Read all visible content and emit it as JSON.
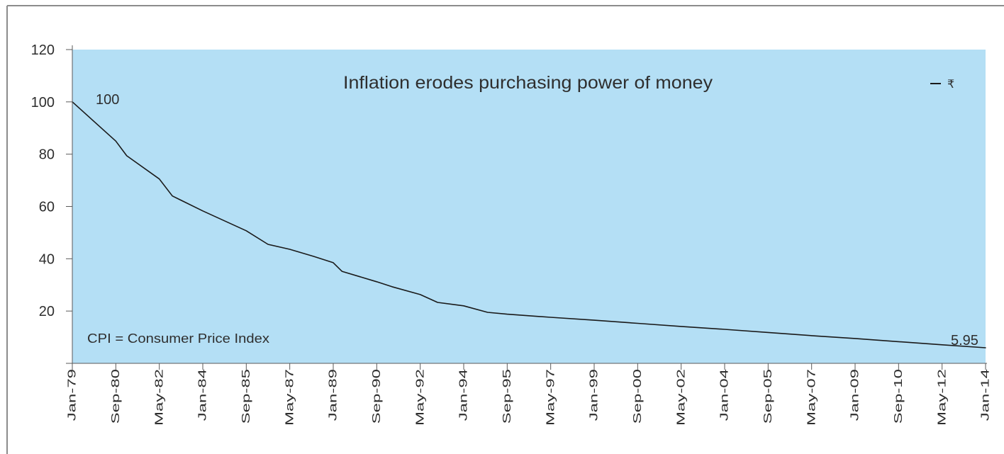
{
  "chart_data": {
    "type": "line",
    "title": "Inflation erodes purchasing power of money",
    "xlim": [
      "1979-01",
      "2014-01"
    ],
    "ylim": [
      0,
      120
    ],
    "y_ticks": [
      20,
      40,
      60,
      80,
      100,
      120
    ],
    "x_tick_labels": [
      "Jan-79",
      "Sep-80",
      "May-82",
      "Jan-84",
      "Sep-85",
      "May-87",
      "Jan-89",
      "Sep-90",
      "May-92",
      "Jan-94",
      "Sep-95",
      "May-97",
      "Jan-99",
      "Sep-00",
      "May-02",
      "Jan-04",
      "Sep-05",
      "May-07",
      "Jan-09",
      "Sep-10",
      "May-12",
      "Jan-14"
    ],
    "grid": false,
    "legend": {
      "position": "top-right"
    },
    "series": [
      {
        "name": "₹",
        "x": [
          "1979-01",
          "1980-09",
          "1981-02",
          "1982-05",
          "1982-11",
          "1984-01",
          "1985-09",
          "1986-07",
          "1987-05",
          "1988-04",
          "1989-01",
          "1989-05",
          "1990-09",
          "1991-04",
          "1992-05",
          "1993-01",
          "1994-01",
          "1994-12",
          "1995-09",
          "1997-05",
          "1999-01",
          "2000-09",
          "2002-05",
          "2004-01",
          "2005-09",
          "2007-05",
          "2009-01",
          "2010-09",
          "2012-05",
          "2014-01"
        ],
        "y": [
          100,
          85.0,
          79.4,
          70.5,
          64.0,
          58.3,
          50.7,
          45.5,
          43.6,
          40.9,
          38.5,
          35.2,
          31.2,
          29.3,
          26.3,
          23.3,
          22.0,
          19.5,
          18.8,
          17.6,
          16.5,
          15.3,
          14.1,
          13.0,
          11.8,
          10.6,
          9.5,
          8.3,
          7.1,
          5.95
        ]
      }
    ],
    "annotations": {
      "start_label": "100",
      "end_label": "5.95",
      "note": "CPI = Consumer Price Index"
    },
    "colors": {
      "plot_background": "#b4dff5",
      "line": "#1a1a1a",
      "axis": "#5a5a5a",
      "frame": "#8c8c8c"
    }
  }
}
